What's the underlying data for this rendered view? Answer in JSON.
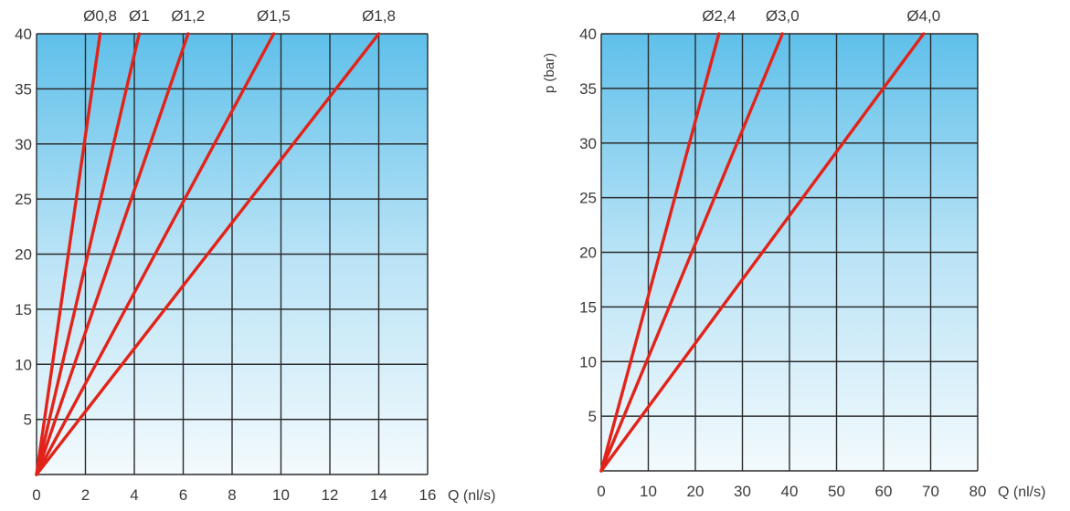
{
  "chart_data": [
    {
      "type": "line",
      "title": "",
      "xlabel": "Q (nl/s)",
      "ylabel": "",
      "xlim": [
        0,
        16
      ],
      "ylim": [
        0,
        40
      ],
      "x_ticks": [
        "0",
        "2",
        "4",
        "6",
        "8",
        "10",
        "12",
        "14",
        "16"
      ],
      "y_ticks": [
        "5",
        "10",
        "15",
        "20",
        "25",
        "30",
        "35",
        "40"
      ],
      "grid": true,
      "series": [
        {
          "name": "Ø0,8",
          "x": [
            0,
            2.6
          ],
          "y": [
            0,
            40
          ]
        },
        {
          "name": "Ø1",
          "x": [
            0,
            4.2
          ],
          "y": [
            0,
            40
          ]
        },
        {
          "name": "Ø1,2",
          "x": [
            0,
            6.2
          ],
          "y": [
            0,
            40
          ]
        },
        {
          "name": "Ø1,5",
          "x": [
            0,
            9.7
          ],
          "y": [
            0,
            40
          ]
        },
        {
          "name": "Ø1,8",
          "x": [
            0,
            14.0
          ],
          "y": [
            0,
            40
          ]
        }
      ],
      "line_color": "#e2231a"
    },
    {
      "type": "line",
      "title": "",
      "xlabel": "Q (nl/s)",
      "ylabel": "p (bar)",
      "xlim": [
        0,
        80
      ],
      "ylim": [
        0,
        40
      ],
      "x_ticks": [
        "0",
        "10",
        "20",
        "30",
        "40",
        "50",
        "60",
        "70",
        "80"
      ],
      "y_ticks": [
        "5",
        "10",
        "15",
        "20",
        "25",
        "30",
        "35",
        "40"
      ],
      "grid": true,
      "series": [
        {
          "name": "Ø2,4",
          "x": [
            0,
            25
          ],
          "y": [
            0,
            40
          ]
        },
        {
          "name": "Ø3,0",
          "x": [
            0,
            38.5
          ],
          "y": [
            0,
            40
          ]
        },
        {
          "name": "Ø4,0",
          "x": [
            0,
            68.5
          ],
          "y": [
            0,
            40
          ]
        }
      ],
      "line_color": "#e2231a"
    }
  ]
}
